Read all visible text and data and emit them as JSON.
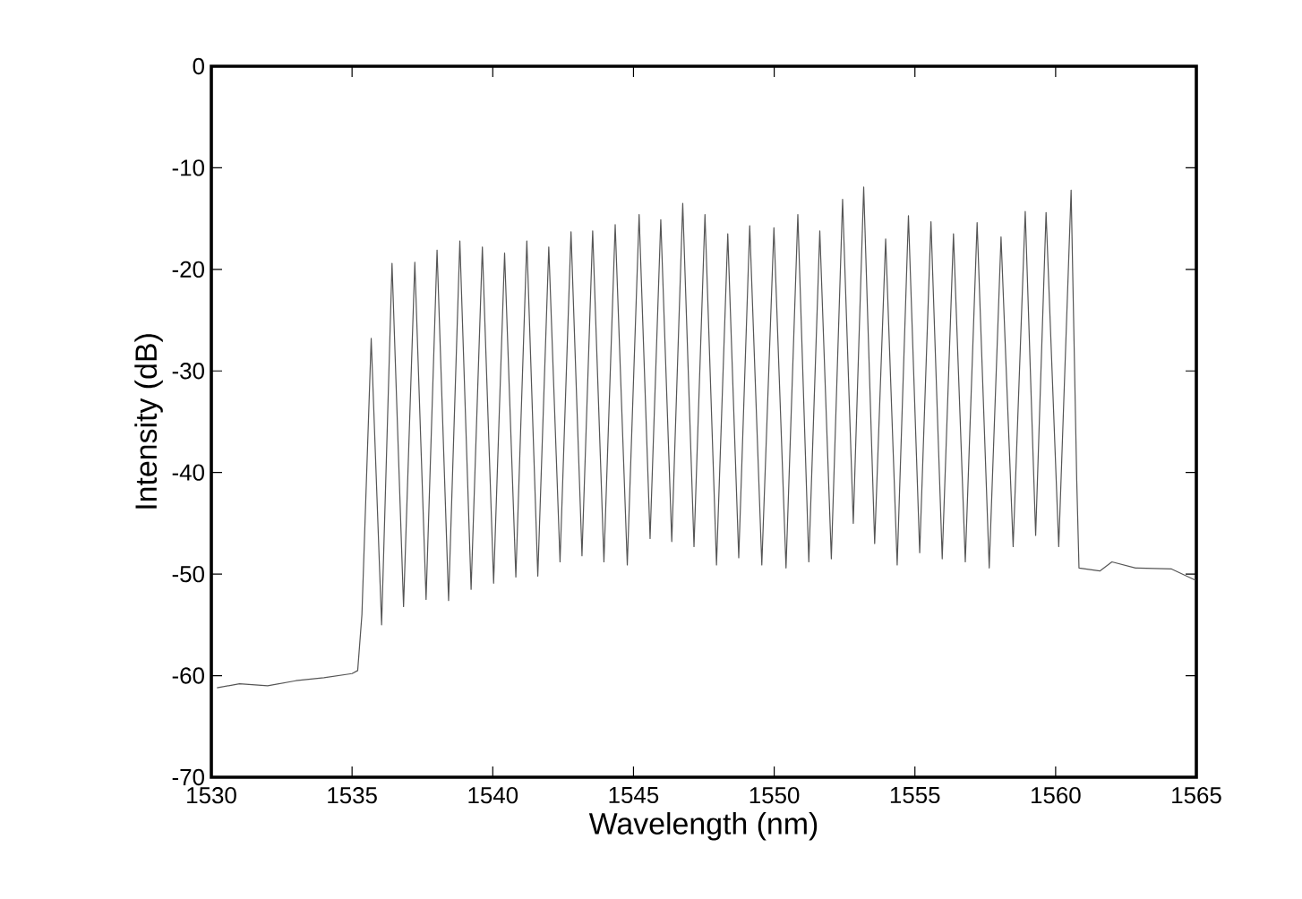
{
  "chart_data": {
    "type": "line",
    "xlabel": "Wavelength (nm)",
    "ylabel": "Intensity (dB)",
    "xlim": [
      1530,
      1565
    ],
    "ylim": [
      -70,
      0
    ],
    "xticks": [
      1530,
      1535,
      1540,
      1545,
      1550,
      1555,
      1560,
      1565
    ],
    "yticks": [
      -70,
      -60,
      -50,
      -40,
      -30,
      -20,
      -10,
      0
    ],
    "marker": "none",
    "line_style": "solid",
    "series": [
      {
        "color": "#555555",
        "x": [
          1530.2,
          1531,
          1532,
          1533,
          1534,
          1535,
          1535.2,
          1535.35,
          1535.68,
          1536.05,
          1536.42,
          1536.83,
          1537.23,
          1537.63,
          1538.02,
          1538.43,
          1538.83,
          1539.23,
          1539.63,
          1540.03,
          1540.42,
          1540.82,
          1541.21,
          1541.6,
          1541.99,
          1542.39,
          1542.78,
          1543.17,
          1543.55,
          1543.95,
          1544.35,
          1544.78,
          1545.2,
          1545.59,
          1545.97,
          1546.36,
          1546.75,
          1547.15,
          1547.54,
          1547.95,
          1548.35,
          1548.74,
          1549.13,
          1549.56,
          1549.99,
          1550.42,
          1550.84,
          1551.23,
          1551.62,
          1552.03,
          1552.43,
          1552.81,
          1553.18,
          1553.57,
          1553.96,
          1554.37,
          1554.77,
          1555.17,
          1555.57,
          1555.97,
          1556.37,
          1556.79,
          1557.21,
          1557.64,
          1558.06,
          1558.49,
          1558.92,
          1559.29,
          1559.66,
          1560.11,
          1560.55,
          1560.75,
          1560.83,
          1561.57,
          1562.0,
          1562.84,
          1564.12,
          1564.97
        ],
        "values": [
          -61.2,
          -60.8,
          -61.0,
          -60.5,
          -60.2,
          -59.8,
          -59.5,
          -54,
          -26.8,
          -55.0,
          -19.4,
          -53.2,
          -19.3,
          -52.5,
          -18.1,
          -52.6,
          -17.2,
          -51.5,
          -17.8,
          -50.9,
          -18.4,
          -50.3,
          -17.2,
          -50.2,
          -17.8,
          -48.8,
          -16.3,
          -48.2,
          -16.2,
          -48.8,
          -15.6,
          -49.1,
          -14.6,
          -46.5,
          -15.1,
          -46.8,
          -13.5,
          -47.3,
          -14.6,
          -49.1,
          -16.5,
          -48.4,
          -15.7,
          -49.1,
          -15.9,
          -49.4,
          -14.6,
          -48.8,
          -16.2,
          -48.5,
          -13.1,
          -45.0,
          -11.9,
          -47.0,
          -17.0,
          -49.1,
          -14.7,
          -47.9,
          -15.3,
          -48.5,
          -16.5,
          -48.8,
          -15.4,
          -49.4,
          -16.8,
          -47.3,
          -14.3,
          -46.2,
          -14.4,
          -47.3,
          -12.2,
          -40.8,
          -49.4,
          -49.7,
          -48.8,
          -49.4,
          -49.5,
          -50.6
        ]
      }
    ]
  }
}
